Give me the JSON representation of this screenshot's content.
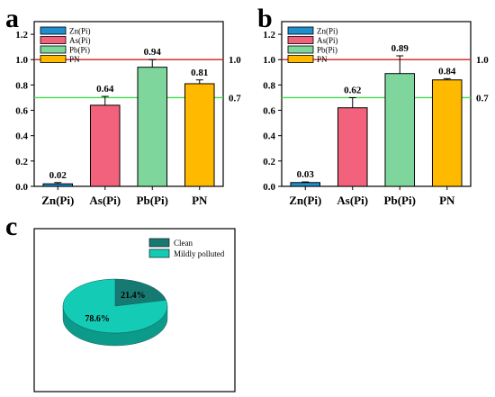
{
  "panels": [
    {
      "letter": "a",
      "chart_data": {
        "type": "bar",
        "categories": [
          "Zn(Pi)",
          "As(Pi)",
          "Pb(Pi)",
          "PN"
        ],
        "values": [
          0.02,
          0.64,
          0.94,
          0.81
        ],
        "errors": [
          0.01,
          0.07,
          0.06,
          0.03
        ],
        "value_labels": [
          "0.02",
          "0.64",
          "0.94",
          "0.81"
        ],
        "colors": [
          "#1f8fcf",
          "#f2627c",
          "#7fd69c",
          "#ffba00"
        ],
        "legend": [
          "Zn(Pi)",
          "As(Pi)",
          "Pb(Pi)",
          "PN"
        ],
        "legend_position": "top-left",
        "ylim": [
          0,
          1.3
        ],
        "yticks": [
          "0.0",
          "0.2",
          "0.4",
          "0.6",
          "0.8",
          "1.0",
          "1.2"
        ],
        "reference_lines": [
          {
            "value": 1.0,
            "label": "1.0",
            "color": "#d61f1f"
          },
          {
            "value": 0.7,
            "label": "0.7",
            "color": "#3fe04a"
          }
        ]
      }
    },
    {
      "letter": "b",
      "chart_data": {
        "type": "bar",
        "categories": [
          "Zn(Pi)",
          "As(Pi)",
          "Pb(Pi)",
          "PN"
        ],
        "values": [
          0.03,
          0.62,
          0.89,
          0.84
        ],
        "errors": [
          0.005,
          0.08,
          0.14,
          0.01
        ],
        "value_labels": [
          "0.03",
          "0.62",
          "0.89",
          "0.84"
        ],
        "colors": [
          "#1f8fcf",
          "#f2627c",
          "#7fd69c",
          "#ffba00"
        ],
        "legend": [
          "Zn(Pi)",
          "As(Pi)",
          "Pb(Pi)",
          "PN"
        ],
        "legend_position": "top-left",
        "ylim": [
          0,
          1.3
        ],
        "yticks": [
          "0.0",
          "0.2",
          "0.4",
          "0.6",
          "0.8",
          "1.0",
          "1.2"
        ],
        "reference_lines": [
          {
            "value": 1.0,
            "label": "1.0",
            "color": "#d61f1f"
          },
          {
            "value": 0.7,
            "label": "0.7",
            "color": "#3fe04a"
          }
        ]
      }
    },
    {
      "letter": "c",
      "chart_data": {
        "type": "pie",
        "categories": [
          "Clean",
          "Mildly polluted"
        ],
        "values": [
          21.4,
          78.6
        ],
        "value_labels": [
          "21.4%",
          "78.6%"
        ],
        "colors": [
          "#167a73",
          "#14cbb6"
        ],
        "side_colors": [
          "#0d5651",
          "#0c9a8b"
        ],
        "legend_position": "top-right",
        "style": "3d"
      }
    }
  ]
}
